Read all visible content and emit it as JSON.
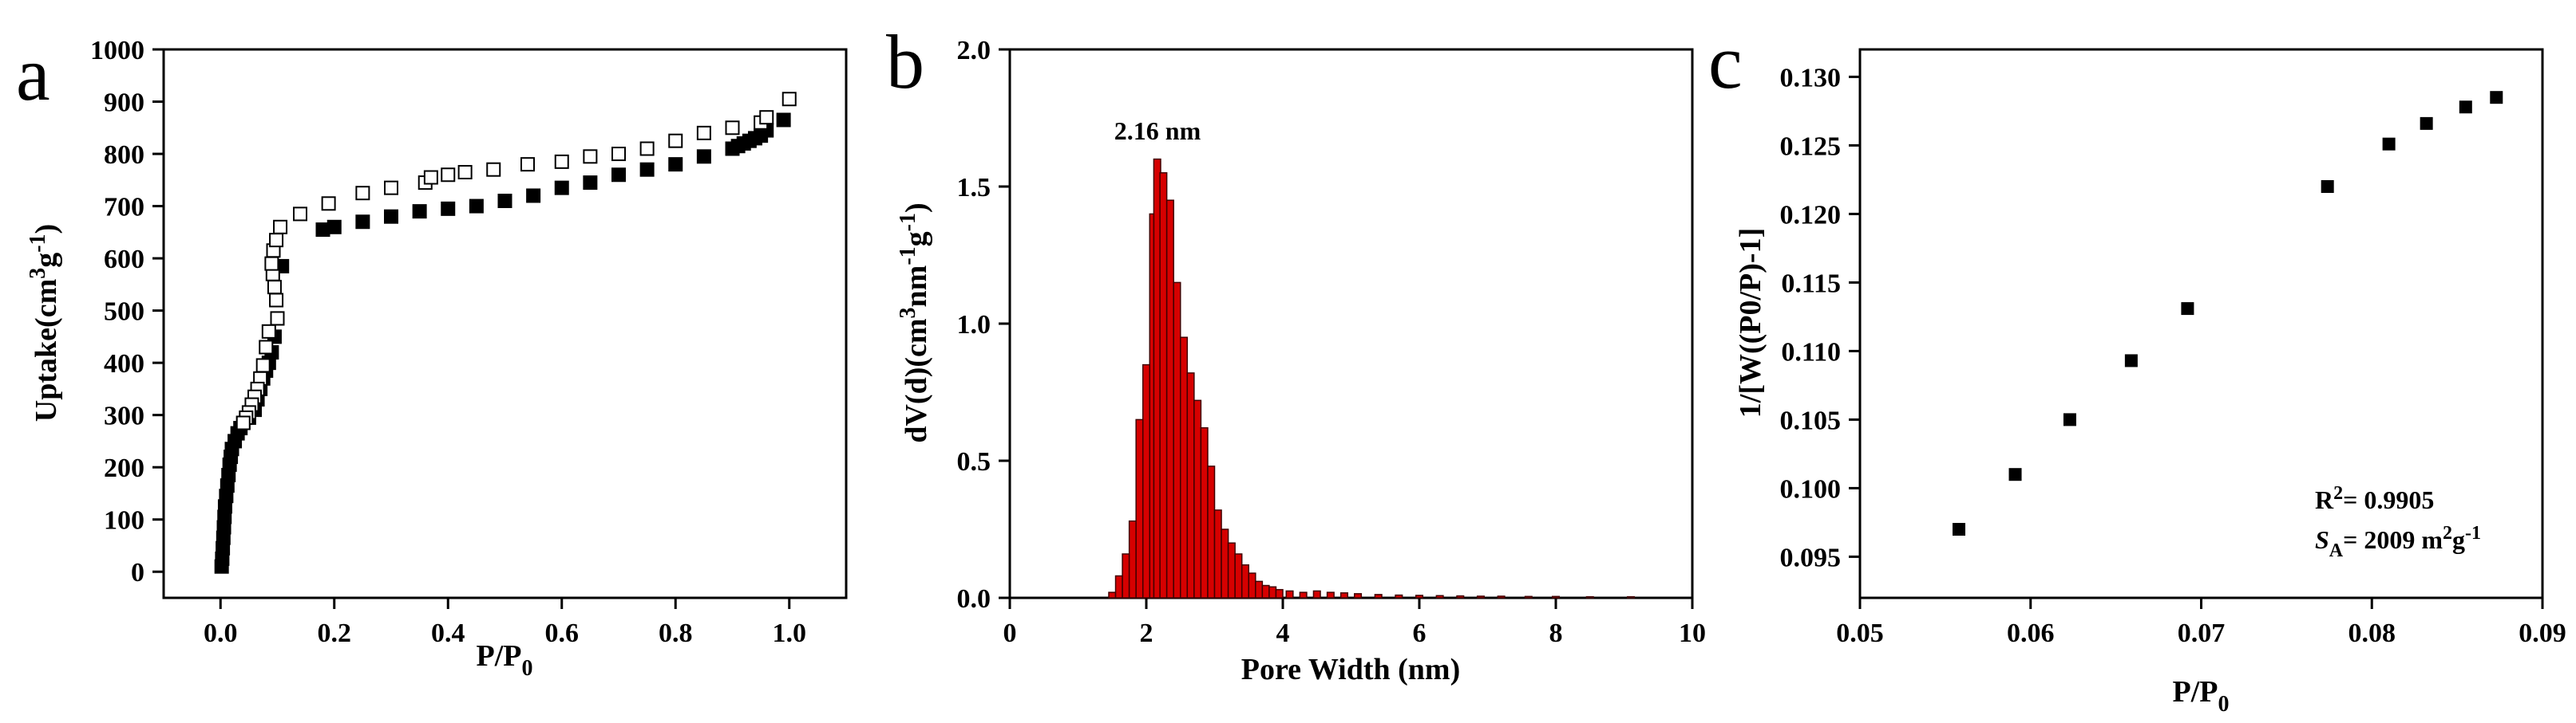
{
  "chart_data": [
    {
      "type": "scatter",
      "panel_label": "a",
      "xlabel": "P/P",
      "xlabel_sub": "0",
      "ylabel": "Uptake(cm",
      "ylabel_sup": "3",
      "ylabel_mid": "g",
      "ylabel_sup2": "-1",
      "ylabel_end": ")",
      "xlim": [
        -0.1,
        1.1
      ],
      "ylim": [
        -50,
        1000
      ],
      "xticks": [
        "0.0",
        "0.2",
        "0.4",
        "0.6",
        "0.8",
        "1.0"
      ],
      "yticks": [
        "0",
        "100",
        "200",
        "300",
        "400",
        "500",
        "600",
        "700",
        "800",
        "900",
        "1000"
      ],
      "series": [
        {
          "marker": "filled-square",
          "points": [
            [
              0.002,
              10
            ],
            [
              0.003,
              25
            ],
            [
              0.004,
              45
            ],
            [
              0.005,
              65
            ],
            [
              0.006,
              85
            ],
            [
              0.007,
              105
            ],
            [
              0.008,
              125
            ],
            [
              0.01,
              145
            ],
            [
              0.012,
              165
            ],
            [
              0.014,
              185
            ],
            [
              0.016,
              205
            ],
            [
              0.018,
              220
            ],
            [
              0.02,
              235
            ],
            [
              0.025,
              250
            ],
            [
              0.03,
              265
            ],
            [
              0.035,
              275
            ],
            [
              0.04,
              285
            ],
            [
              0.05,
              295
            ],
            [
              0.06,
              310
            ],
            [
              0.065,
              330
            ],
            [
              0.07,
              350
            ],
            [
              0.075,
              370
            ],
            [
              0.08,
              385
            ],
            [
              0.085,
              400
            ],
            [
              0.09,
              420
            ],
            [
              0.095,
              450
            ],
            [
              0.1,
              485
            ],
            [
              0.108,
              585
            ],
            [
              0.18,
              655
            ],
            [
              0.2,
              660
            ],
            [
              0.25,
              670
            ],
            [
              0.3,
              680
            ],
            [
              0.35,
              690
            ],
            [
              0.4,
              695
            ],
            [
              0.45,
              700
            ],
            [
              0.5,
              710
            ],
            [
              0.55,
              720
            ],
            [
              0.6,
              735
            ],
            [
              0.65,
              745
            ],
            [
              0.7,
              760
            ],
            [
              0.75,
              770
            ],
            [
              0.8,
              780
            ],
            [
              0.85,
              795
            ],
            [
              0.9,
              810
            ],
            [
              0.91,
              815
            ],
            [
              0.92,
              820
            ],
            [
              0.93,
              825
            ],
            [
              0.94,
              830
            ],
            [
              0.95,
              835
            ],
            [
              0.96,
              845
            ],
            [
              0.99,
              865
            ]
          ]
        },
        {
          "marker": "open-square",
          "points": [
            [
              0.1,
              485
            ],
            [
              0.098,
              520
            ],
            [
              0.095,
              545
            ],
            [
              0.092,
              570
            ],
            [
              0.09,
              590
            ],
            [
              0.093,
              615
            ],
            [
              0.098,
              635
            ],
            [
              0.105,
              660
            ],
            [
              0.14,
              685
            ],
            [
              0.19,
              705
            ],
            [
              0.25,
              725
            ],
            [
              0.3,
              735
            ],
            [
              0.36,
              745
            ],
            [
              0.37,
              755
            ],
            [
              0.4,
              760
            ],
            [
              0.43,
              765
            ],
            [
              0.48,
              770
            ],
            [
              0.54,
              780
            ],
            [
              0.6,
              785
            ],
            [
              0.65,
              795
            ],
            [
              0.7,
              800
            ],
            [
              0.75,
              810
            ],
            [
              0.8,
              825
            ],
            [
              0.85,
              840
            ],
            [
              0.9,
              850
            ],
            [
              0.95,
              860
            ],
            [
              0.96,
              870
            ],
            [
              1.0,
              905
            ],
            [
              0.08,
              430
            ],
            [
              0.085,
              460
            ],
            [
              0.075,
              395
            ],
            [
              0.07,
              370
            ],
            [
              0.065,
              350
            ],
            [
              0.06,
              335
            ],
            [
              0.055,
              320
            ],
            [
              0.05,
              305
            ],
            [
              0.045,
              295
            ],
            [
              0.04,
              285
            ]
          ]
        }
      ]
    },
    {
      "type": "bar",
      "panel_label": "b",
      "xlabel": "Pore Width (nm)",
      "ylabel": "dV(d)(cm",
      "ylabel_sup": "3",
      "ylabel_mid": "nm",
      "ylabel_sup2": "-1",
      "ylabel_mid2": "g",
      "ylabel_sup3": "-1",
      "ylabel_end": ")",
      "xlim": [
        0,
        10
      ],
      "ylim": [
        0,
        2.0
      ],
      "xticks": [
        "0",
        "2",
        "4",
        "6",
        "8",
        "10"
      ],
      "yticks": [
        "0.0",
        "0.5",
        "1.0",
        "1.5",
        "2.0"
      ],
      "peak_label": "2.16 nm",
      "bar_width": 0.1,
      "bars": [
        [
          1.5,
          0.02
        ],
        [
          1.6,
          0.08
        ],
        [
          1.7,
          0.16
        ],
        [
          1.8,
          0.28
        ],
        [
          1.9,
          0.65
        ],
        [
          2.0,
          0.85
        ],
        [
          2.1,
          1.4
        ],
        [
          2.16,
          1.6
        ],
        [
          2.25,
          1.55
        ],
        [
          2.35,
          1.45
        ],
        [
          2.45,
          1.15
        ],
        [
          2.55,
          0.95
        ],
        [
          2.65,
          0.82
        ],
        [
          2.75,
          0.72
        ],
        [
          2.85,
          0.62
        ],
        [
          2.95,
          0.48
        ],
        [
          3.05,
          0.32
        ],
        [
          3.15,
          0.25
        ],
        [
          3.25,
          0.2
        ],
        [
          3.35,
          0.16
        ],
        [
          3.45,
          0.12
        ],
        [
          3.55,
          0.09
        ],
        [
          3.65,
          0.06
        ],
        [
          3.75,
          0.045
        ],
        [
          3.85,
          0.04
        ],
        [
          3.95,
          0.03
        ],
        [
          4.1,
          0.025
        ],
        [
          4.3,
          0.02
        ],
        [
          4.5,
          0.025
        ],
        [
          4.7,
          0.02
        ],
        [
          4.9,
          0.018
        ],
        [
          5.1,
          0.015
        ],
        [
          5.4,
          0.012
        ],
        [
          5.7,
          0.01
        ],
        [
          6.0,
          0.009
        ],
        [
          6.3,
          0.008
        ],
        [
          6.6,
          0.007
        ],
        [
          6.9,
          0.006
        ],
        [
          7.2,
          0.006
        ],
        [
          7.6,
          0.005
        ],
        [
          8.0,
          0.005
        ],
        [
          8.5,
          0.004
        ],
        [
          9.1,
          0.004
        ]
      ]
    },
    {
      "type": "scatter",
      "panel_label": "c",
      "xlabel": "P/P",
      "xlabel_sub": "0",
      "ylabel": "1/[W((P0/P)-1]",
      "xlim": [
        0.05,
        0.09
      ],
      "ylim": [
        0.092,
        0.132
      ],
      "xticks": [
        "0.05",
        "0.06",
        "0.07",
        "0.08",
        "0.09"
      ],
      "yticks": [
        "0.095",
        "0.100",
        "0.105",
        "0.110",
        "0.115",
        "0.120",
        "0.125",
        "0.130"
      ],
      "annotation_r2_label": "R",
      "annotation_r2_sup": "2",
      "annotation_r2_value": "= 0.9905",
      "annotation_sa_label": "S",
      "annotation_sa_sub": "A",
      "annotation_sa_value": "= 2009 m",
      "annotation_sa_sup": "2",
      "annotation_sa_unit": "g",
      "annotation_sa_sup2": "-1",
      "points": [
        [
          0.0558,
          0.097
        ],
        [
          0.0591,
          0.101
        ],
        [
          0.0623,
          0.105
        ],
        [
          0.0659,
          0.1093
        ],
        [
          0.0692,
          0.1131
        ],
        [
          0.0774,
          0.122
        ],
        [
          0.081,
          0.1251
        ],
        [
          0.0832,
          0.1266
        ],
        [
          0.0855,
          0.1278
        ],
        [
          0.0873,
          0.1285
        ]
      ]
    }
  ]
}
